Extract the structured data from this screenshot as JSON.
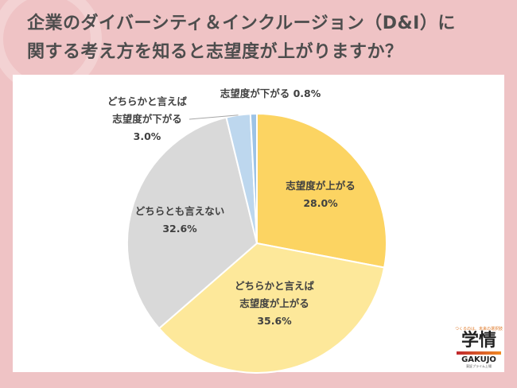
{
  "title_line1": "企業のダイバーシティ＆インクルージョン（D&I）に",
  "title_line2": "関する考え方を知ると志望度が上がりますか？",
  "logo": {
    "tagline": "つくるのは、未来の選択肢",
    "mark": "学情",
    "name": "GAKUJO",
    "sub": "東証プライム上場"
  },
  "chart_data": {
    "type": "pie",
    "start": "12 o'clock, clockwise",
    "slices": [
      {
        "label": "志望度が上がる",
        "value": 28.0,
        "display": "28.0%",
        "color": "#fcd462"
      },
      {
        "label": "どちらかと言えば 志望度が上がる",
        "value": 35.6,
        "display": "35.6%",
        "color": "#fde89a"
      },
      {
        "label": "どちらとも言えない",
        "value": 32.6,
        "display": "32.6%",
        "color": "#d9d9d9"
      },
      {
        "label": "どちらかと言えば 志望度が下がる",
        "value": 3.0,
        "display": "3.0%",
        "color": "#bdd7ee"
      },
      {
        "label": "志望度が下がる",
        "value": 0.8,
        "display": "0.8%",
        "color": "#9dc3e6"
      }
    ]
  }
}
